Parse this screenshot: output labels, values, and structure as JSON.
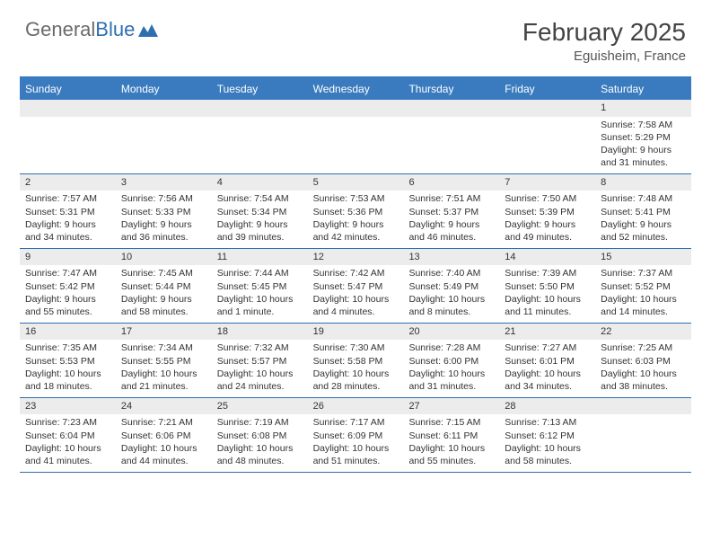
{
  "logo": {
    "text1": "General",
    "text2": "Blue"
  },
  "title": "February 2025",
  "location": "Eguisheim, France",
  "colors": {
    "header_bg": "#3a7bbf",
    "header_text": "#ffffff",
    "border": "#2f6fb0",
    "daynum_bg": "#ececec",
    "body_text": "#333333",
    "logo_gray": "#6b6b6b",
    "logo_blue": "#2f6fb0"
  },
  "day_names": [
    "Sunday",
    "Monday",
    "Tuesday",
    "Wednesday",
    "Thursday",
    "Friday",
    "Saturday"
  ],
  "weeks": [
    [
      {
        "n": "",
        "sr": "",
        "ss": "",
        "dl": ""
      },
      {
        "n": "",
        "sr": "",
        "ss": "",
        "dl": ""
      },
      {
        "n": "",
        "sr": "",
        "ss": "",
        "dl": ""
      },
      {
        "n": "",
        "sr": "",
        "ss": "",
        "dl": ""
      },
      {
        "n": "",
        "sr": "",
        "ss": "",
        "dl": ""
      },
      {
        "n": "",
        "sr": "",
        "ss": "",
        "dl": ""
      },
      {
        "n": "1",
        "sr": "Sunrise: 7:58 AM",
        "ss": "Sunset: 5:29 PM",
        "dl": "Daylight: 9 hours and 31 minutes."
      }
    ],
    [
      {
        "n": "2",
        "sr": "Sunrise: 7:57 AM",
        "ss": "Sunset: 5:31 PM",
        "dl": "Daylight: 9 hours and 34 minutes."
      },
      {
        "n": "3",
        "sr": "Sunrise: 7:56 AM",
        "ss": "Sunset: 5:33 PM",
        "dl": "Daylight: 9 hours and 36 minutes."
      },
      {
        "n": "4",
        "sr": "Sunrise: 7:54 AM",
        "ss": "Sunset: 5:34 PM",
        "dl": "Daylight: 9 hours and 39 minutes."
      },
      {
        "n": "5",
        "sr": "Sunrise: 7:53 AM",
        "ss": "Sunset: 5:36 PM",
        "dl": "Daylight: 9 hours and 42 minutes."
      },
      {
        "n": "6",
        "sr": "Sunrise: 7:51 AM",
        "ss": "Sunset: 5:37 PM",
        "dl": "Daylight: 9 hours and 46 minutes."
      },
      {
        "n": "7",
        "sr": "Sunrise: 7:50 AM",
        "ss": "Sunset: 5:39 PM",
        "dl": "Daylight: 9 hours and 49 minutes."
      },
      {
        "n": "8",
        "sr": "Sunrise: 7:48 AM",
        "ss": "Sunset: 5:41 PM",
        "dl": "Daylight: 9 hours and 52 minutes."
      }
    ],
    [
      {
        "n": "9",
        "sr": "Sunrise: 7:47 AM",
        "ss": "Sunset: 5:42 PM",
        "dl": "Daylight: 9 hours and 55 minutes."
      },
      {
        "n": "10",
        "sr": "Sunrise: 7:45 AM",
        "ss": "Sunset: 5:44 PM",
        "dl": "Daylight: 9 hours and 58 minutes."
      },
      {
        "n": "11",
        "sr": "Sunrise: 7:44 AM",
        "ss": "Sunset: 5:45 PM",
        "dl": "Daylight: 10 hours and 1 minute."
      },
      {
        "n": "12",
        "sr": "Sunrise: 7:42 AM",
        "ss": "Sunset: 5:47 PM",
        "dl": "Daylight: 10 hours and 4 minutes."
      },
      {
        "n": "13",
        "sr": "Sunrise: 7:40 AM",
        "ss": "Sunset: 5:49 PM",
        "dl": "Daylight: 10 hours and 8 minutes."
      },
      {
        "n": "14",
        "sr": "Sunrise: 7:39 AM",
        "ss": "Sunset: 5:50 PM",
        "dl": "Daylight: 10 hours and 11 minutes."
      },
      {
        "n": "15",
        "sr": "Sunrise: 7:37 AM",
        "ss": "Sunset: 5:52 PM",
        "dl": "Daylight: 10 hours and 14 minutes."
      }
    ],
    [
      {
        "n": "16",
        "sr": "Sunrise: 7:35 AM",
        "ss": "Sunset: 5:53 PM",
        "dl": "Daylight: 10 hours and 18 minutes."
      },
      {
        "n": "17",
        "sr": "Sunrise: 7:34 AM",
        "ss": "Sunset: 5:55 PM",
        "dl": "Daylight: 10 hours and 21 minutes."
      },
      {
        "n": "18",
        "sr": "Sunrise: 7:32 AM",
        "ss": "Sunset: 5:57 PM",
        "dl": "Daylight: 10 hours and 24 minutes."
      },
      {
        "n": "19",
        "sr": "Sunrise: 7:30 AM",
        "ss": "Sunset: 5:58 PM",
        "dl": "Daylight: 10 hours and 28 minutes."
      },
      {
        "n": "20",
        "sr": "Sunrise: 7:28 AM",
        "ss": "Sunset: 6:00 PM",
        "dl": "Daylight: 10 hours and 31 minutes."
      },
      {
        "n": "21",
        "sr": "Sunrise: 7:27 AM",
        "ss": "Sunset: 6:01 PM",
        "dl": "Daylight: 10 hours and 34 minutes."
      },
      {
        "n": "22",
        "sr": "Sunrise: 7:25 AM",
        "ss": "Sunset: 6:03 PM",
        "dl": "Daylight: 10 hours and 38 minutes."
      }
    ],
    [
      {
        "n": "23",
        "sr": "Sunrise: 7:23 AM",
        "ss": "Sunset: 6:04 PM",
        "dl": "Daylight: 10 hours and 41 minutes."
      },
      {
        "n": "24",
        "sr": "Sunrise: 7:21 AM",
        "ss": "Sunset: 6:06 PM",
        "dl": "Daylight: 10 hours and 44 minutes."
      },
      {
        "n": "25",
        "sr": "Sunrise: 7:19 AM",
        "ss": "Sunset: 6:08 PM",
        "dl": "Daylight: 10 hours and 48 minutes."
      },
      {
        "n": "26",
        "sr": "Sunrise: 7:17 AM",
        "ss": "Sunset: 6:09 PM",
        "dl": "Daylight: 10 hours and 51 minutes."
      },
      {
        "n": "27",
        "sr": "Sunrise: 7:15 AM",
        "ss": "Sunset: 6:11 PM",
        "dl": "Daylight: 10 hours and 55 minutes."
      },
      {
        "n": "28",
        "sr": "Sunrise: 7:13 AM",
        "ss": "Sunset: 6:12 PM",
        "dl": "Daylight: 10 hours and 58 minutes."
      },
      {
        "n": "",
        "sr": "",
        "ss": "",
        "dl": ""
      }
    ]
  ]
}
